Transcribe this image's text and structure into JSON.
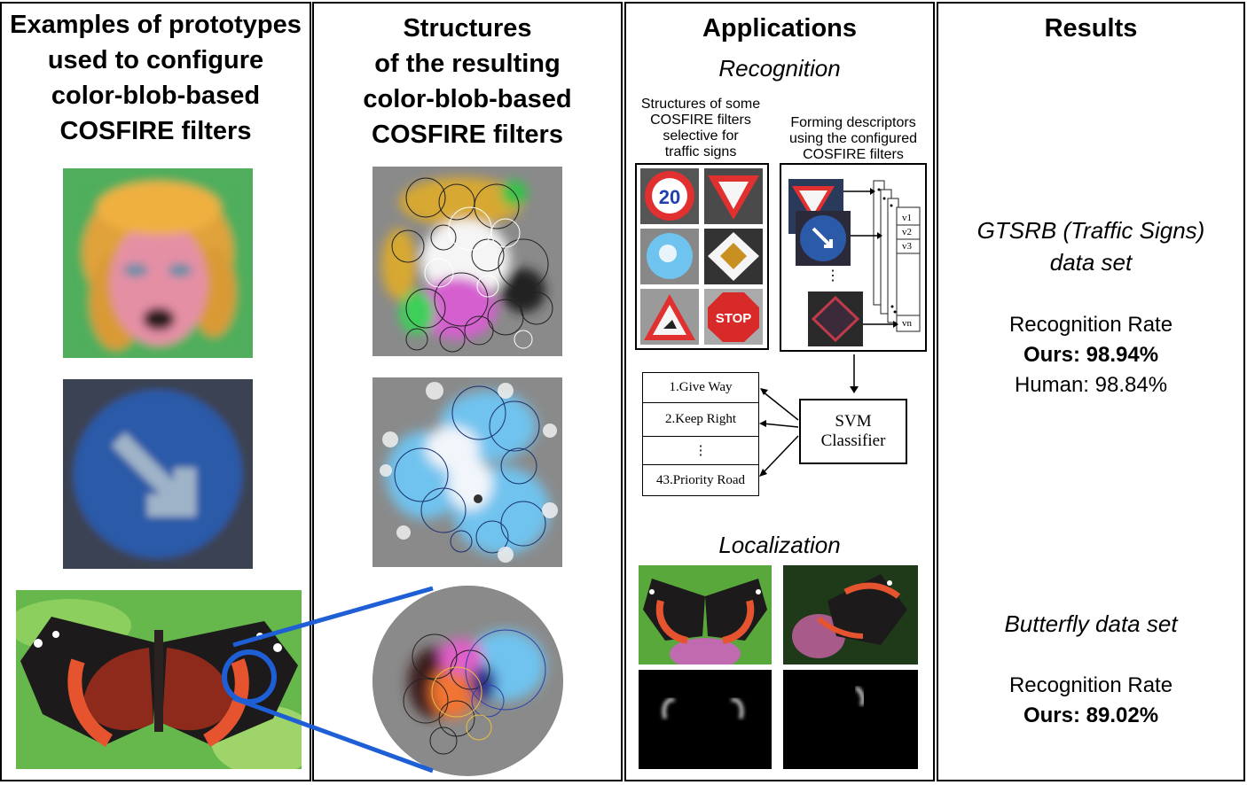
{
  "columns": {
    "prototypes": {
      "title_lines": [
        "Examples of prototypes",
        "used to configure",
        "color-blob-based",
        "COSFIRE filters"
      ]
    },
    "structures": {
      "title_lines": [
        "Structures",
        "of the resulting",
        "color-blob-based",
        "COSFIRE filters"
      ]
    },
    "applications": {
      "title": "Applications",
      "recognition": {
        "heading": "Recognition",
        "filters_caption_lines": [
          "Structures of some",
          "COSFIRE filters",
          "selective for",
          "traffic signs"
        ],
        "descriptor_caption_lines": [
          "Forming descriptors",
          "using the configured",
          "COSFIRE filters"
        ],
        "vector_labels": [
          "v1",
          "v2",
          "v3",
          "vn"
        ],
        "ellipsis": "⋮",
        "sign_texts": {
          "speed": "20",
          "stop": "STOP"
        },
        "classifier_lines": [
          "SVM",
          "Classifier"
        ],
        "classes": [
          "1.Give Way",
          "2.Keep Right",
          "⋮",
          "43.Priority Road"
        ]
      },
      "localization": {
        "heading": "Localization"
      }
    },
    "results": {
      "title": "Results",
      "gtsrb": {
        "dataset_lines": [
          "GTSRB (Traffic Signs)",
          "data set"
        ],
        "metric": "Recognition Rate",
        "ours": "Ours: 98.94%",
        "human": "Human: 98.84%"
      },
      "butterfly": {
        "dataset": "Butterfly data set",
        "metric": "Recognition Rate",
        "ours": "Ours: 89.02%"
      }
    }
  },
  "colors": {
    "border": "#000000",
    "highlight_blue": "#1f5fd6",
    "green_bg": "#4faa5a",
    "sign_blue": "#2a5db0",
    "filter_bg": "#8a8a8a"
  }
}
